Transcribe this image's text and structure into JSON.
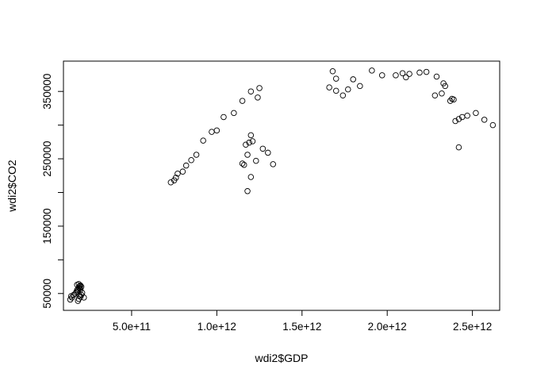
{
  "chart_data": {
    "type": "scatter",
    "title": "",
    "xlabel": "wdi2$GDP",
    "ylabel": "wdi2$CO2",
    "xlim": [
      100000000000,
      2660000000000
    ],
    "ylim": [
      25000,
      395000
    ],
    "x_ticks": [
      500000000000,
      1000000000000,
      1500000000000,
      2000000000000,
      2500000000000
    ],
    "x_tick_labels": [
      "5.0e+11",
      "1.0e+12",
      "1.5e+12",
      "2.0e+12",
      "2.5e+12"
    ],
    "y_ticks": [
      50000,
      100000,
      150000,
      200000,
      250000,
      300000,
      350000
    ],
    "y_tick_labels": [
      "50000",
      "",
      "150000",
      "",
      "250000",
      "",
      "350000"
    ],
    "grid": false,
    "legend": "none",
    "series": [
      {
        "marker": "open-circle",
        "color": "#000000",
        "x": [
          140000000000.0,
          150000000000.0,
          145000000000.0,
          160000000000.0,
          170000000000.0,
          175000000000.0,
          180000000000.0,
          185000000000.0,
          190000000000.0,
          195000000000.0,
          180000000000.0,
          190000000000.0,
          200000000000.0,
          185000000000.0,
          195000000000.0,
          200000000000.0,
          190000000000.0,
          205000000000.0,
          210000000000.0,
          220000000000.0,
          185000000000.0,
          195000000000.0,
          200000000000.0,
          205000000000.0,
          730000000000.0,
          750000000000.0,
          760000000000.0,
          770000000000.0,
          800000000000.0,
          820000000000.0,
          850000000000.0,
          880000000000.0,
          920000000000.0,
          970000000000.0,
          1000000000000.0,
          1040000000000.0,
          1100000000000.0,
          1150000000000.0,
          1200000000000.0,
          1240000000000.0,
          1250000000000.0,
          1150000000000.0,
          1160000000000.0,
          1170000000000.0,
          1200000000000.0,
          1190000000000.0,
          1210000000000.0,
          1180000000000.0,
          1230000000000.0,
          1270000000000.0,
          1300000000000.0,
          1330000000000.0,
          1180000000000.0,
          1200000000000.0,
          1660000000000.0,
          1680000000000.0,
          1700000000000.0,
          1700000000000.0,
          1740000000000.0,
          1770000000000.0,
          1800000000000.0,
          1840000000000.0,
          1910000000000.0,
          1970000000000.0,
          2050000000000.0,
          2090000000000.0,
          2110000000000.0,
          2130000000000.0,
          2190000000000.0,
          2230000000000.0,
          2280000000000.0,
          2290000000000.0,
          2320000000000.0,
          2330000000000.0,
          2340000000000.0,
          2370000000000.0,
          2380000000000.0,
          2390000000000.0,
          2400000000000.0,
          2420000000000.0,
          2440000000000.0,
          2470000000000.0,
          2520000000000.0,
          2570000000000.0,
          2620000000000.0,
          2420000000000.0
        ],
        "y": [
          41000,
          44000,
          46000,
          48000,
          50000,
          52000,
          55000,
          57000,
          59000,
          61000,
          63000,
          64000,
          62000,
          53000,
          47000,
          45000,
          42000,
          48000,
          51000,
          44000,
          39000,
          58000,
          56000,
          60000,
          215000,
          218000,
          222000,
          228000,
          231000,
          240000,
          248000,
          256000,
          277000,
          290000,
          292000,
          312000,
          318000,
          336000,
          350000,
          341000,
          355000,
          243000,
          241000,
          271000,
          285000,
          274000,
          276000,
          256000,
          247000,
          265000,
          259000,
          242000,
          202000,
          223000,
          356000,
          380000,
          351000,
          369000,
          344000,
          353000,
          368000,
          358000,
          381000,
          374000,
          374000,
          377000,
          371000,
          376000,
          378000,
          379000,
          344000,
          372000,
          347000,
          362000,
          358000,
          336000,
          339000,
          338000,
          306000,
          267000,
          312000,
          314000,
          318000,
          308000,
          300000,
          309000
        ]
      }
    ]
  }
}
